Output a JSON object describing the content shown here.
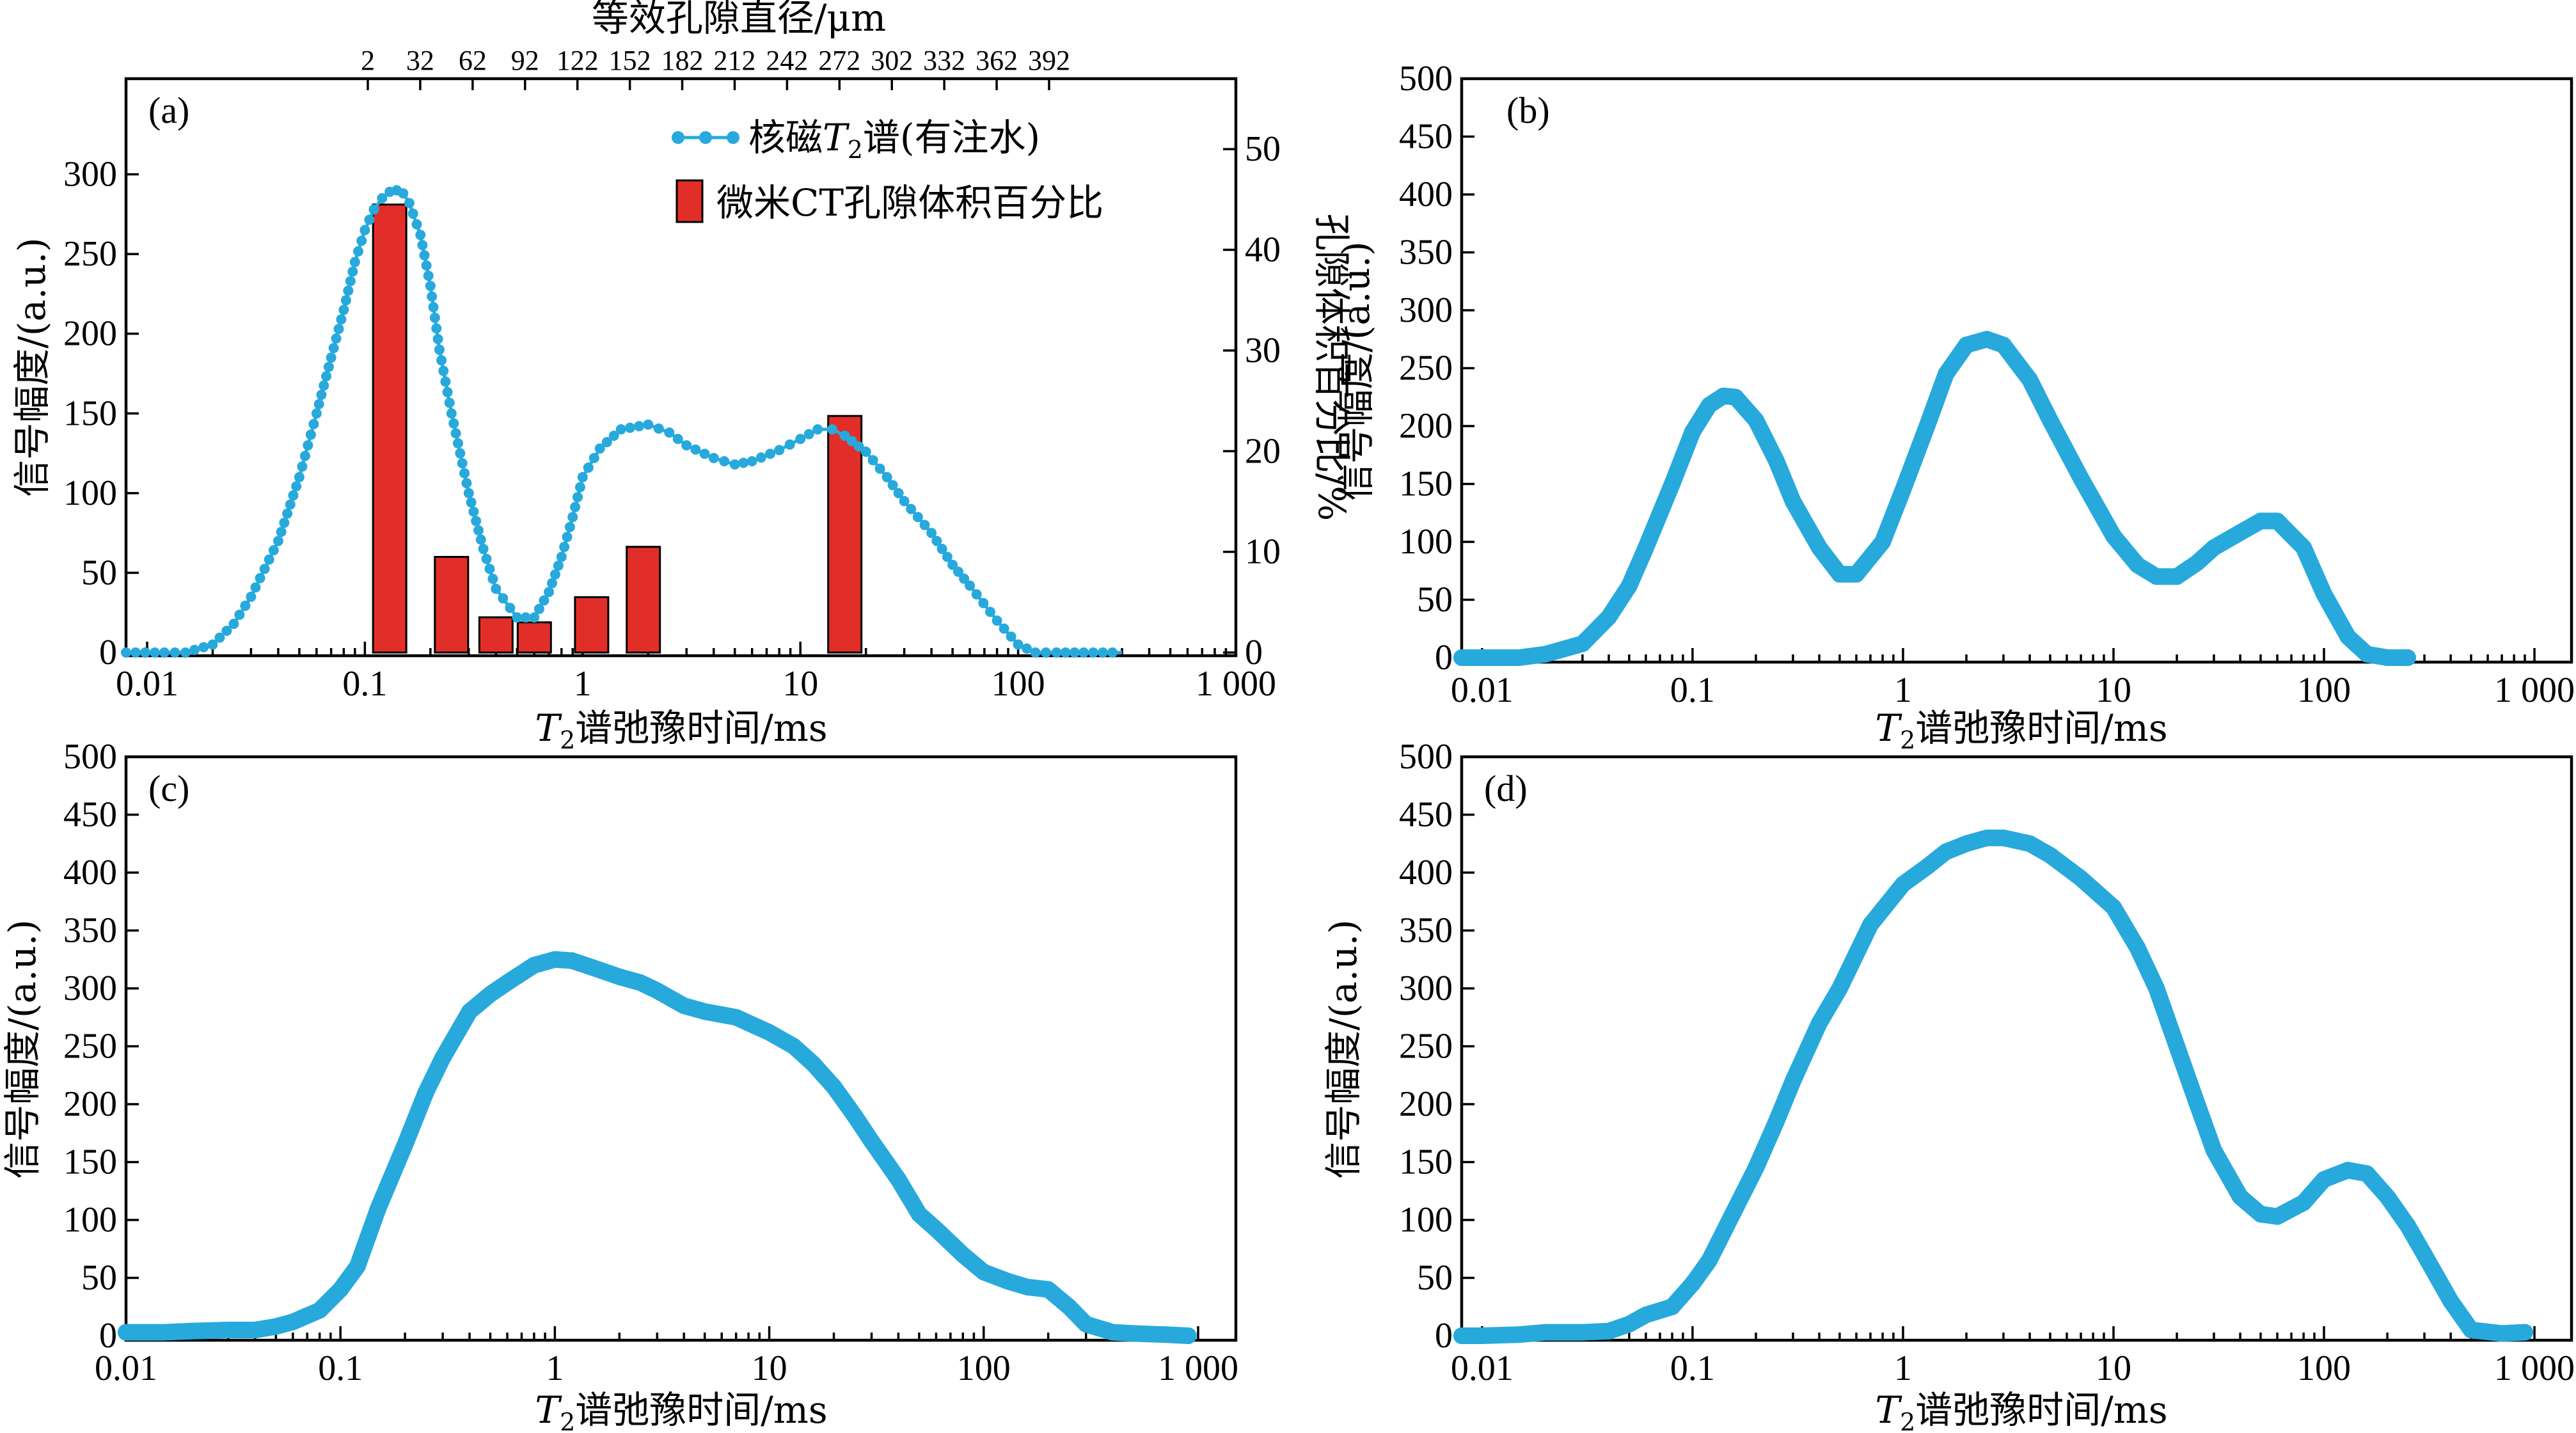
{
  "colors": {
    "nmr": "#27a9dc",
    "bar": "#e22e28",
    "axis": "#000000"
  },
  "chart_data": [
    {
      "panel": "(a)",
      "type": "line+bar",
      "xscale": "log",
      "xlabel": {
        "italic": "T",
        "sub": "2",
        "rest": "谱弛豫时间/ms"
      },
      "xlim": [
        0.008,
        1000
      ],
      "xticks": [
        {
          "v": 0.01,
          "t": "0.01"
        },
        {
          "v": 0.1,
          "t": "0.1"
        },
        {
          "v": 1,
          "t": "1"
        },
        {
          "v": 10,
          "t": "10"
        },
        {
          "v": 100,
          "t": "100"
        },
        {
          "v": 1000,
          "t": "1 000"
        }
      ],
      "ylabel": "信号幅度/(a.u.)",
      "ylim": [
        0,
        360
      ],
      "yticks": [
        0,
        50,
        100,
        150,
        200,
        250,
        300
      ],
      "y2label": "孔隙体积百分比/%",
      "y2lim": [
        0,
        57
      ],
      "y2ticks": [
        0,
        10,
        20,
        30,
        40,
        50
      ],
      "top_axis_label": "等效孔隙直径/μm",
      "top_ticks": [
        "2",
        "32",
        "62",
        "92",
        "122",
        "152",
        "182",
        "212",
        "242",
        "272",
        "302",
        "332",
        "362",
        "392"
      ],
      "legend": [
        {
          "italic": "T",
          "sub": "2",
          "prefix": "核磁",
          "rest": "谱(有注水)"
        },
        {
          "text": "微米CT孔隙体积百分比"
        }
      ],
      "series_line": {
        "x": [
          0.008,
          0.012,
          0.015,
          0.02,
          0.025,
          0.03,
          0.04,
          0.05,
          0.06,
          0.07,
          0.08,
          0.09,
          0.1,
          0.11,
          0.12,
          0.13,
          0.14,
          0.15,
          0.16,
          0.18,
          0.2,
          0.22,
          0.25,
          0.3,
          0.35,
          0.4,
          0.5,
          0.6,
          0.7,
          0.8,
          0.9,
          1,
          1.2,
          1.5,
          2,
          2.5,
          3,
          4,
          5,
          6,
          8,
          10,
          12,
          14,
          16,
          20,
          25,
          30,
          40,
          50,
          60,
          80,
          100,
          120,
          150,
          200,
          300
        ],
        "y": [
          0,
          0,
          0,
          5,
          18,
          35,
          70,
          110,
          150,
          185,
          215,
          245,
          265,
          278,
          285,
          289,
          290,
          288,
          282,
          262,
          230,
          190,
          150,
          100,
          65,
          40,
          22,
          22,
          38,
          60,
          85,
          110,
          128,
          140,
          143,
          138,
          130,
          122,
          118,
          120,
          127,
          134,
          140,
          140,
          136,
          126,
          110,
          95,
          75,
          55,
          42,
          20,
          5,
          0,
          0,
          0,
          0
        ]
      },
      "series_bar": {
        "x": [
          0.13,
          0.25,
          0.4,
          0.6,
          1.1,
          1.9,
          16
        ],
        "y": [
          44.5,
          9.5,
          3.5,
          3,
          5.5,
          10.5,
          23.5
        ]
      }
    },
    {
      "panel": "(b)",
      "type": "line",
      "xscale": "log",
      "xlabel": {
        "italic": "T",
        "sub": "2",
        "rest": "谱弛豫时间/ms"
      },
      "xlim": [
        0.008,
        1500
      ],
      "xticks": [
        {
          "v": 0.01,
          "t": "0.01"
        },
        {
          "v": 0.1,
          "t": "0.1"
        },
        {
          "v": 1,
          "t": "1"
        },
        {
          "v": 10,
          "t": "10"
        },
        {
          "v": 100,
          "t": "100"
        },
        {
          "v": 1000,
          "t": "1 000"
        }
      ],
      "ylabel": "信号幅度/(a.u.)",
      "ylim": [
        0,
        500
      ],
      "yticks": [
        0,
        50,
        100,
        150,
        200,
        250,
        300,
        350,
        400,
        450,
        500
      ],
      "x": [
        0.008,
        0.01,
        0.015,
        0.02,
        0.03,
        0.04,
        0.05,
        0.06,
        0.08,
        0.1,
        0.12,
        0.14,
        0.16,
        0.2,
        0.25,
        0.3,
        0.4,
        0.5,
        0.6,
        0.8,
        1,
        1.3,
        1.6,
        2,
        2.5,
        3,
        4,
        5,
        7,
        10,
        13,
        16,
        20,
        25,
        30,
        40,
        50,
        60,
        80,
        100,
        130,
        160,
        200,
        250
      ],
      "y": [
        0,
        0,
        0,
        3,
        12,
        35,
        62,
        95,
        150,
        195,
        218,
        226,
        225,
        205,
        170,
        135,
        95,
        72,
        72,
        100,
        145,
        200,
        245,
        270,
        275,
        270,
        240,
        205,
        155,
        105,
        80,
        70,
        70,
        82,
        95,
        108,
        118,
        118,
        95,
        55,
        18,
        3,
        0,
        0
      ]
    },
    {
      "panel": "(c)",
      "type": "line",
      "xscale": "log",
      "xlabel": {
        "italic": "T",
        "sub": "2",
        "rest": "谱弛豫时间/ms"
      },
      "xlim": [
        0.01,
        1500
      ],
      "xticks": [
        {
          "v": 0.01,
          "t": "0.01"
        },
        {
          "v": 0.1,
          "t": "0.1"
        },
        {
          "v": 1,
          "t": "1"
        },
        {
          "v": 10,
          "t": "10"
        },
        {
          "v": 100,
          "t": "100"
        },
        {
          "v": 1000,
          "t": "1 000"
        }
      ],
      "ylabel": "信号幅度/(a.u.)",
      "ylim": [
        0,
        500
      ],
      "yticks": [
        0,
        50,
        100,
        150,
        200,
        250,
        300,
        350,
        400,
        450,
        500
      ],
      "x": [
        0.01,
        0.015,
        0.02,
        0.03,
        0.04,
        0.05,
        0.06,
        0.08,
        0.1,
        0.12,
        0.15,
        0.2,
        0.25,
        0.3,
        0.4,
        0.5,
        0.6,
        0.8,
        1,
        1.2,
        1.5,
        2,
        2.5,
        3,
        4,
        5,
        7,
        10,
        13,
        16,
        20,
        25,
        30,
        40,
        50,
        60,
        80,
        100,
        130,
        160,
        200,
        250,
        300,
        400,
        500,
        700,
        900
      ],
      "y": [
        3,
        3,
        4,
        5,
        5,
        8,
        12,
        22,
        40,
        60,
        110,
        165,
        210,
        240,
        280,
        295,
        305,
        320,
        325,
        324,
        318,
        310,
        305,
        298,
        285,
        280,
        275,
        262,
        250,
        235,
        215,
        190,
        168,
        135,
        105,
        92,
        70,
        55,
        47,
        42,
        40,
        25,
        10,
        3,
        2,
        1,
        0
      ]
    },
    {
      "panel": "(d)",
      "type": "line",
      "xscale": "log",
      "xlabel": {
        "italic": "T",
        "sub": "2",
        "rest": "谱弛豫时间/ms"
      },
      "xlim": [
        0.008,
        1500
      ],
      "xticks": [
        {
          "v": 0.01,
          "t": "0.01"
        },
        {
          "v": 0.1,
          "t": "0.1"
        },
        {
          "v": 1,
          "t": "1"
        },
        {
          "v": 10,
          "t": "10"
        },
        {
          "v": 100,
          "t": "100"
        },
        {
          "v": 1000,
          "t": "1 000"
        }
      ],
      "ylabel": "信号幅度/(a.u.)",
      "ylim": [
        0,
        500
      ],
      "yticks": [
        0,
        50,
        100,
        150,
        200,
        250,
        300,
        350,
        400,
        450,
        500
      ],
      "x": [
        0.008,
        0.01,
        0.015,
        0.02,
        0.03,
        0.04,
        0.05,
        0.06,
        0.08,
        0.1,
        0.12,
        0.15,
        0.2,
        0.25,
        0.3,
        0.4,
        0.5,
        0.7,
        1,
        1.3,
        1.6,
        2,
        2.5,
        3,
        4,
        5,
        7,
        10,
        13,
        16,
        20,
        25,
        30,
        40,
        50,
        60,
        80,
        100,
        130,
        160,
        200,
        250,
        300,
        400,
        500,
        700,
        900
      ],
      "y": [
        0,
        0,
        1,
        3,
        3,
        4,
        10,
        18,
        25,
        45,
        65,
        100,
        145,
        185,
        220,
        270,
        300,
        355,
        390,
        405,
        418,
        425,
        430,
        430,
        425,
        415,
        395,
        370,
        335,
        300,
        250,
        200,
        160,
        120,
        105,
        103,
        115,
        135,
        143,
        140,
        120,
        95,
        70,
        30,
        5,
        2,
        3
      ]
    }
  ]
}
